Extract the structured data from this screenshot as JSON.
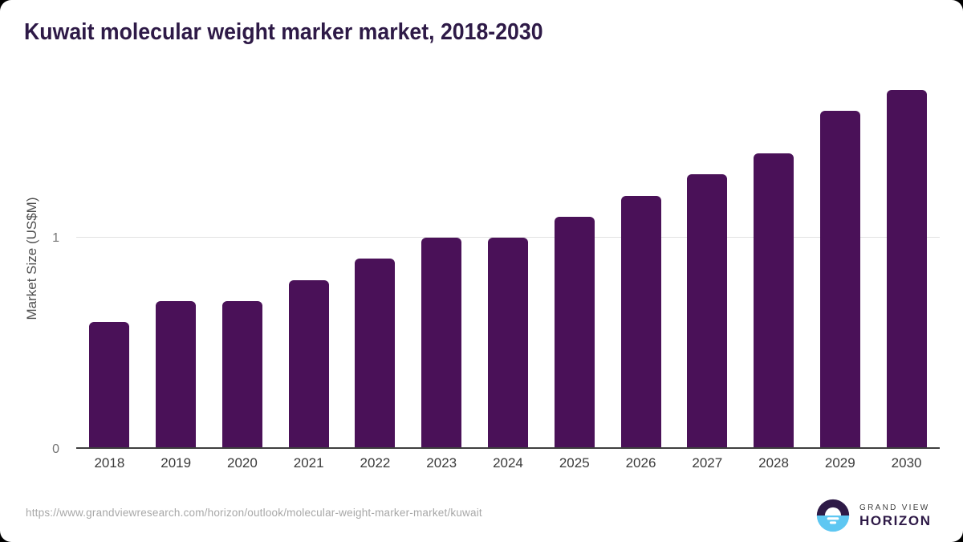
{
  "chart_data": {
    "type": "bar",
    "title": "Kuwait molecular weight marker market, 2018-2030",
    "categories": [
      "2018",
      "2019",
      "2020",
      "2021",
      "2022",
      "2023",
      "2024",
      "2025",
      "2026",
      "2027",
      "2028",
      "2029",
      "2030"
    ],
    "values": [
      0.6,
      0.7,
      0.7,
      0.8,
      0.9,
      1.0,
      1.0,
      1.1,
      1.2,
      1.3,
      1.4,
      1.6,
      1.7
    ],
    "xlabel": "",
    "ylabel": "Market Size (US$M)",
    "yticks": [
      0,
      1
    ],
    "ylim": [
      0,
      1.75
    ],
    "grid": "single horizontal gridline at y=1",
    "legend": "none",
    "bar_color": "#4a1158"
  },
  "footer": {
    "source_url": "https://www.grandviewresearch.com/horizon/outlook/molecular-weight-marker-market/kuwait",
    "logo": {
      "brand_top": "GRAND VIEW",
      "brand_bottom": "HORIZON"
    }
  },
  "colors": {
    "title": "#2e1a47",
    "bar": "#4a1158",
    "gridline": "#e2e2e2",
    "axis_line": "#3f3f3f",
    "ytick_label": "#757575",
    "x_label": "#3a3a3a",
    "url_text": "#a8a8a8",
    "logo_blue": "#5ec7f2",
    "logo_purple": "#2e1a47"
  }
}
